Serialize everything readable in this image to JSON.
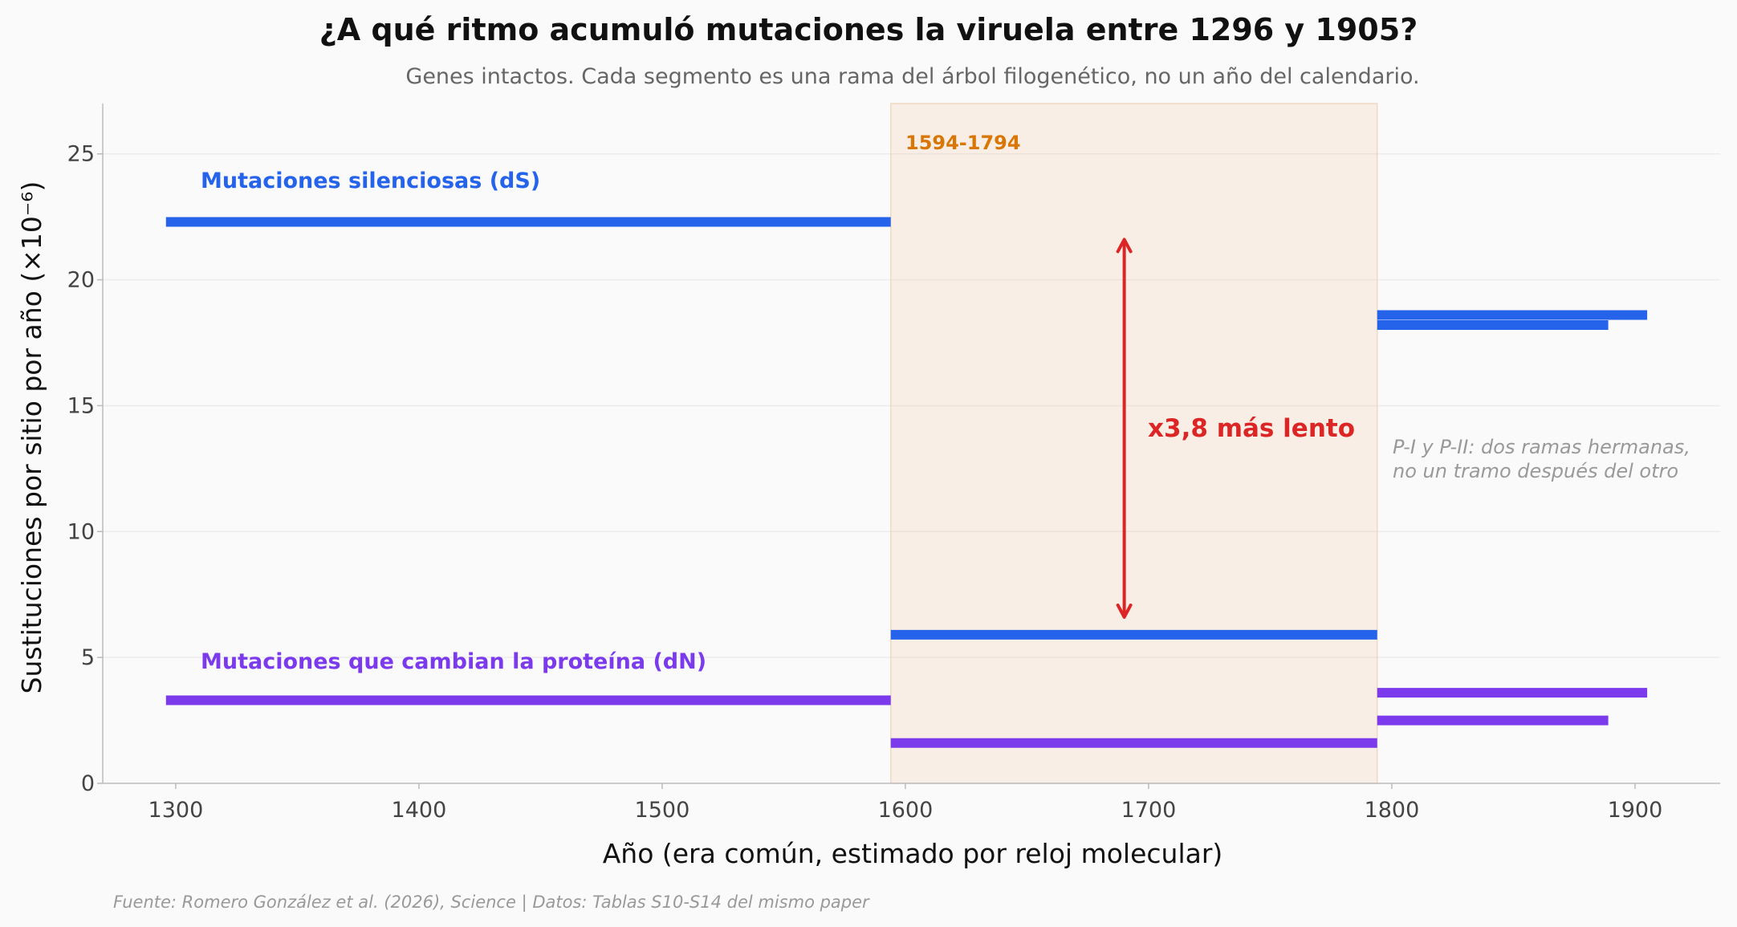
{
  "chart_data": {
    "type": "line",
    "title": "¿A qué ritmo acumuló mutaciones la viruela entre 1296 y 1905?",
    "subtitle": "Genes intactos. Cada segmento es una rama del árbol filogenético, no un año del calendario.",
    "xlabel": "Año (era común, estimado por reloj molecular)",
    "ylabel": "Sustituciones por sitio por año (×10⁻⁶)",
    "xlim": [
      1270,
      1935
    ],
    "ylim": [
      0,
      27
    ],
    "x_ticks": [
      1300,
      1400,
      1500,
      1600,
      1700,
      1800,
      1900
    ],
    "y_ticks": [
      0,
      5,
      10,
      15,
      20,
      25
    ],
    "grid": "horizontal",
    "highlight_period": {
      "start": 1594,
      "end": 1794,
      "label": "1594-1794",
      "color": "#d97706"
    },
    "series": [
      {
        "name": "Mutaciones silenciosas (dS)",
        "color": "#2563eb",
        "segments": [
          {
            "x_start": 1296,
            "x_end": 1594,
            "y": 22.3
          },
          {
            "x_start": 1594,
            "x_end": 1794,
            "y": 5.9
          },
          {
            "x_start": 1794,
            "x_end": 1905,
            "y": 18.6
          },
          {
            "x_start": 1794,
            "x_end": 1889,
            "y": 18.2
          }
        ]
      },
      {
        "name": "Mutaciones que cambian la proteína (dN)",
        "color": "#7c3aed",
        "segments": [
          {
            "x_start": 1296,
            "x_end": 1594,
            "y": 3.3
          },
          {
            "x_start": 1594,
            "x_end": 1794,
            "y": 1.6
          },
          {
            "x_start": 1794,
            "x_end": 1905,
            "y": 3.6
          },
          {
            "x_start": 1794,
            "x_end": 1889,
            "y": 2.5
          }
        ]
      }
    ],
    "ratio_annotation": {
      "label": "x3,8 más lento",
      "x": 1690,
      "y_from": 6.6,
      "y_to": 21.6,
      "color": "#dc2626"
    },
    "note_lines": [
      "P-I y P-II: dos ramas hermanas,",
      "no un tramo después del otro"
    ],
    "source": "Fuente: Romero González et al. (2026), Science | Datos: Tablas S10-S14 del mismo paper"
  }
}
